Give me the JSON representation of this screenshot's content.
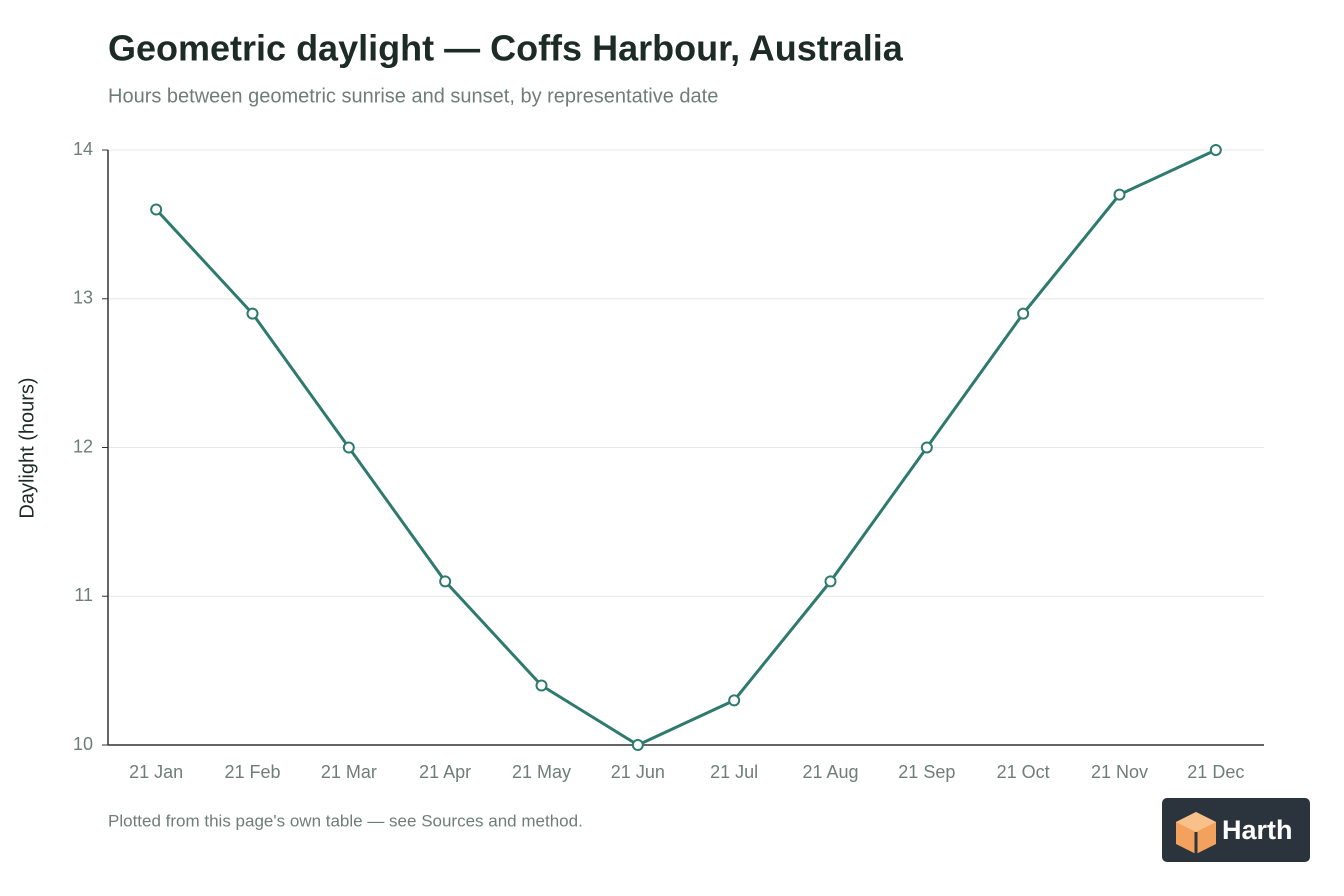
{
  "chart_data": {
    "type": "line",
    "title": "Geometric daylight — Coffs Harbour, Australia",
    "subtitle": "Hours between geometric sunrise and sunset, by representative date",
    "y_label": "Daylight (hours)",
    "categories": [
      "21 Jan",
      "21 Feb",
      "21 Mar",
      "21 Apr",
      "21 May",
      "21 Jun",
      "21 Jul",
      "21 Aug",
      "21 Sep",
      "21 Oct",
      "21 Nov",
      "21 Dec"
    ],
    "values": [
      13.6,
      12.9,
      12.0,
      11.1,
      10.4,
      10.0,
      10.3,
      11.1,
      12.0,
      12.9,
      13.7,
      14.0
    ],
    "color": "#2e7a6e",
    "ylim": [
      10,
      14
    ],
    "yticks": [
      10,
      11,
      12,
      13,
      14
    ],
    "grid": true,
    "note": "Plotted from this page's own table — see Sources and method."
  },
  "brand": "Harth"
}
